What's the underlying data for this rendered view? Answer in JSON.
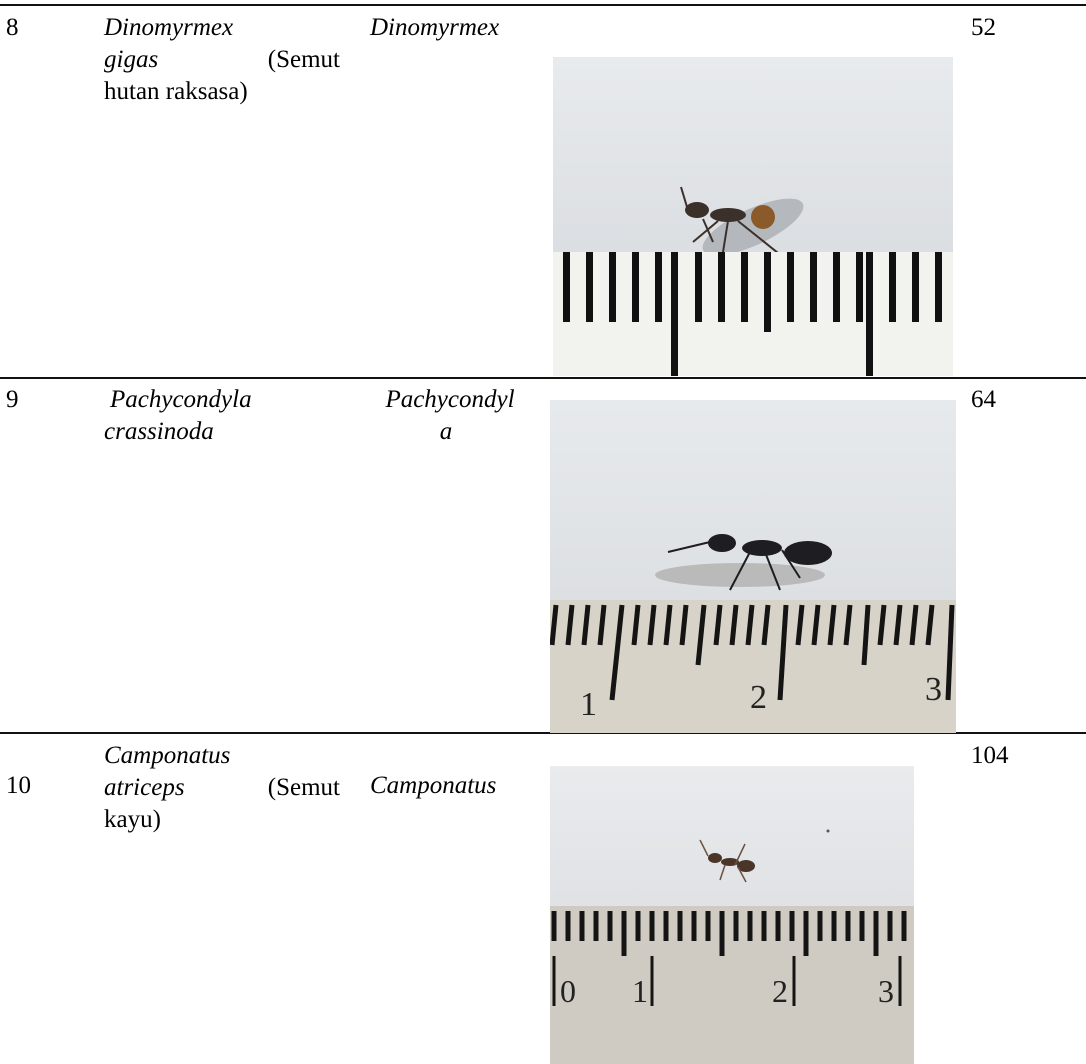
{
  "rows": [
    {
      "no": "8",
      "species_line1": "Dinomyrmex",
      "species_line2": "gigas",
      "species_line2_common": "(Semut",
      "species_line3": "hutan raksasa)",
      "genus": "Dinomyrmex",
      "count": "52",
      "photo": "dinomyrmex-gigas-specimen-photo"
    },
    {
      "no": "9",
      "species_line1": "Pachycondyla",
      "species_line2": "crassinoda",
      "genus_line1": "Pachycondyl",
      "genus_line2": "a",
      "count": "64",
      "photo": "pachycondyla-crassinoda-specimen-photo",
      "ruler_labels": [
        "1",
        "2",
        "3"
      ]
    },
    {
      "no": "10",
      "species_line1": "Camponatus",
      "species_line2": "atriceps",
      "species_line2_common": "(Semut",
      "species_line3": "kayu)",
      "genus": "Camponatus",
      "count": "104",
      "photo": "camponatus-atriceps-specimen-photo",
      "ruler_labels": [
        "0",
        "1",
        "2",
        "3"
      ]
    }
  ]
}
